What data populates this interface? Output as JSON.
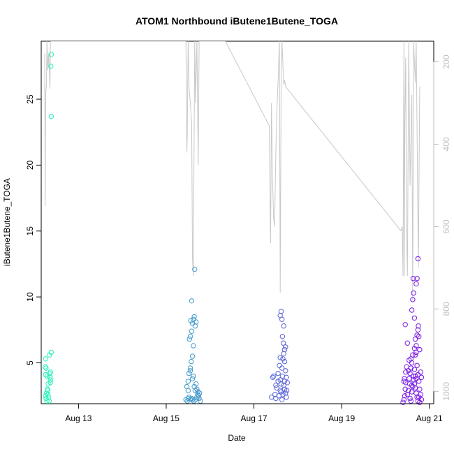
{
  "chart_data": {
    "type": "scatter",
    "title": "ATOM1 Northbound iButene1Butene_TOGA",
    "xlabel": "Date",
    "ylabel": "iButene1Butene_TOGA",
    "xlim": [
      12.15,
      21.1
    ],
    "ylim": [
      1.9,
      29.4
    ],
    "x_ticks": [
      {
        "value": 13,
        "label": "Aug 13"
      },
      {
        "value": 15,
        "label": "Aug 15"
      },
      {
        "value": 17,
        "label": "Aug 17"
      },
      {
        "value": 19,
        "label": "Aug 19"
      },
      {
        "value": 21,
        "label": "Aug 21"
      }
    ],
    "y_ticks": [
      5,
      10,
      15,
      20,
      25
    ],
    "y2_ticks": [
      200,
      400,
      600,
      800,
      1000
    ],
    "y2lim_reversed": [
      150,
      1030
    ],
    "color_gradient": {
      "start": "#22f5b8",
      "end": "#7a10e8"
    },
    "points": [
      [
        12.25,
        5.3
      ],
      [
        12.24,
        4.7
      ],
      [
        12.26,
        4.6
      ],
      [
        12.25,
        4.1
      ],
      [
        12.28,
        4.0
      ],
      [
        12.27,
        2.7
      ],
      [
        12.25,
        2.5
      ],
      [
        12.26,
        2.3
      ],
      [
        12.28,
        2.1
      ],
      [
        12.3,
        2.6
      ],
      [
        12.3,
        2.9
      ],
      [
        12.32,
        2.4
      ],
      [
        12.33,
        2.1
      ],
      [
        12.34,
        4.2
      ],
      [
        12.35,
        3.9
      ],
      [
        12.36,
        3.7
      ],
      [
        12.36,
        4.3
      ],
      [
        12.34,
        5.6
      ],
      [
        12.38,
        5.8
      ],
      [
        12.38,
        23.7
      ],
      [
        12.37,
        27.5
      ],
      [
        12.38,
        28.4
      ],
      [
        12.31,
        3.4
      ],
      [
        12.29,
        3.0
      ],
      [
        12.36,
        3.5
      ],
      [
        15.45,
        2.2
      ],
      [
        15.48,
        2.1
      ],
      [
        15.5,
        2.3
      ],
      [
        15.52,
        2.4
      ],
      [
        15.55,
        2.2
      ],
      [
        15.58,
        2.3
      ],
      [
        15.6,
        2.2
      ],
      [
        15.63,
        2.1
      ],
      [
        15.66,
        2.2
      ],
      [
        15.7,
        2.4
      ],
      [
        15.72,
        2.6
      ],
      [
        15.75,
        2.3
      ],
      [
        15.78,
        2.1
      ],
      [
        15.47,
        3.2
      ],
      [
        15.5,
        3.6
      ],
      [
        15.52,
        4.2
      ],
      [
        15.55,
        4.6
      ],
      [
        15.57,
        5.1
      ],
      [
        15.6,
        5.5
      ],
      [
        15.62,
        6.3
      ],
      [
        15.53,
        6.8
      ],
      [
        15.55,
        7.0
      ],
      [
        15.58,
        7.4
      ],
      [
        15.6,
        8.0
      ],
      [
        15.62,
        8.3
      ],
      [
        15.56,
        8.2
      ],
      [
        15.64,
        8.5
      ],
      [
        15.66,
        7.8
      ],
      [
        15.68,
        8.1
      ],
      [
        15.58,
        9.7
      ],
      [
        15.65,
        12.1
      ],
      [
        15.7,
        3.0
      ],
      [
        15.72,
        2.8
      ],
      [
        15.6,
        3.8
      ],
      [
        15.62,
        4.0
      ],
      [
        15.64,
        3.2
      ],
      [
        15.66,
        2.9
      ],
      [
        15.68,
        3.4
      ],
      [
        15.55,
        4.4
      ],
      [
        15.5,
        2.9
      ],
      [
        15.74,
        2.5
      ],
      [
        15.76,
        2.7
      ],
      [
        17.4,
        2.4
      ],
      [
        17.43,
        3.9
      ],
      [
        17.45,
        4.0
      ],
      [
        17.48,
        2.6
      ],
      [
        17.5,
        2.3
      ],
      [
        17.52,
        3.1
      ],
      [
        17.55,
        3.6
      ],
      [
        17.57,
        2.5
      ],
      [
        17.6,
        2.9
      ],
      [
        17.62,
        3.4
      ],
      [
        17.64,
        4.6
      ],
      [
        17.66,
        5.3
      ],
      [
        17.68,
        5.7
      ],
      [
        17.7,
        6.0
      ],
      [
        17.72,
        6.2
      ],
      [
        17.6,
        8.6
      ],
      [
        17.62,
        8.9
      ],
      [
        17.64,
        8.3
      ],
      [
        17.68,
        7.8
      ],
      [
        17.65,
        7.0
      ],
      [
        17.67,
        6.5
      ],
      [
        17.7,
        5.1
      ],
      [
        17.72,
        4.4
      ],
      [
        17.74,
        3.9
      ],
      [
        17.6,
        3.7
      ],
      [
        17.62,
        2.8
      ],
      [
        17.64,
        2.2
      ],
      [
        17.66,
        2.6
      ],
      [
        17.68,
        3.3
      ],
      [
        17.7,
        3.0
      ],
      [
        17.72,
        2.7
      ],
      [
        17.74,
        2.4
      ],
      [
        17.76,
        3.5
      ],
      [
        17.5,
        3.3
      ],
      [
        17.55,
        4.2
      ],
      [
        17.58,
        4.8
      ],
      [
        17.6,
        5.4
      ],
      [
        17.65,
        4.0
      ],
      [
        17.7,
        3.6
      ],
      [
        17.75,
        2.9
      ],
      [
        20.4,
        2.0
      ],
      [
        20.42,
        2.2
      ],
      [
        20.44,
        2.5
      ],
      [
        20.45,
        3.0
      ],
      [
        20.46,
        3.5
      ],
      [
        20.43,
        3.8
      ],
      [
        20.45,
        7.9
      ],
      [
        20.5,
        6.5
      ],
      [
        20.52,
        4.4
      ],
      [
        20.54,
        5.2
      ],
      [
        20.55,
        3.4
      ],
      [
        20.56,
        2.3
      ],
      [
        20.58,
        2.1
      ],
      [
        20.6,
        2.8
      ],
      [
        20.62,
        3.2
      ],
      [
        20.64,
        4.0
      ],
      [
        20.66,
        4.5
      ],
      [
        20.68,
        5.6
      ],
      [
        20.7,
        6.3
      ],
      [
        20.72,
        7.1
      ],
      [
        20.74,
        7.5
      ],
      [
        20.6,
        9.0
      ],
      [
        20.62,
        9.8
      ],
      [
        20.64,
        10.3
      ],
      [
        20.66,
        8.4
      ],
      [
        20.68,
        6.8
      ],
      [
        20.7,
        5.8
      ],
      [
        20.72,
        4.8
      ],
      [
        20.74,
        4.1
      ],
      [
        20.76,
        3.6
      ],
      [
        20.78,
        3.0
      ],
      [
        20.8,
        2.6
      ],
      [
        20.82,
        2.2
      ],
      [
        20.63,
        11.4
      ],
      [
        20.7,
        11.0
      ],
      [
        20.72,
        11.4
      ],
      [
        20.74,
        12.9
      ],
      [
        20.75,
        7.8
      ],
      [
        20.76,
        7.0
      ],
      [
        20.78,
        6.0
      ],
      [
        20.56,
        4.2
      ],
      [
        20.58,
        4.6
      ],
      [
        20.6,
        5.0
      ],
      [
        20.62,
        5.6
      ],
      [
        20.64,
        3.7
      ],
      [
        20.66,
        3.4
      ],
      [
        20.68,
        3.1
      ],
      [
        20.7,
        2.7
      ],
      [
        20.72,
        2.4
      ],
      [
        20.74,
        2.1
      ],
      [
        20.5,
        2.6
      ],
      [
        20.52,
        2.9
      ],
      [
        20.48,
        4.7
      ],
      [
        20.46,
        4.3
      ],
      [
        20.54,
        3.8
      ],
      [
        20.8,
        4.3
      ],
      [
        20.82,
        3.9
      ],
      [
        20.6,
        3.3
      ],
      [
        20.66,
        6.1
      ],
      [
        20.68,
        4.0
      ],
      [
        20.7,
        3.8
      ],
      [
        20.58,
        5.3
      ],
      [
        20.42,
        3.6
      ],
      [
        20.76,
        2.4
      ],
      [
        20.78,
        2.0
      ]
    ],
    "altitude_line": [
      [
        12.23,
        265
      ],
      [
        12.23,
        180
      ],
      [
        12.24,
        550
      ],
      [
        12.25,
        280
      ],
      [
        12.27,
        255
      ],
      [
        12.28,
        150
      ],
      [
        12.3,
        220
      ],
      [
        12.32,
        180
      ],
      [
        12.35,
        265
      ],
      [
        12.36,
        150
      ],
      [
        15.45,
        150
      ],
      [
        15.47,
        420
      ],
      [
        15.48,
        380
      ],
      [
        15.5,
        150
      ],
      [
        15.52,
        260
      ],
      [
        15.55,
        300
      ],
      [
        15.58,
        350
      ],
      [
        15.6,
        680
      ],
      [
        15.62,
        720
      ],
      [
        15.63,
        500
      ],
      [
        15.65,
        150
      ],
      [
        15.67,
        300
      ],
      [
        15.7,
        150
      ],
      [
        15.73,
        450
      ],
      [
        15.75,
        150
      ],
      [
        16.35,
        150
      ],
      [
        17.35,
        355
      ],
      [
        17.38,
        640
      ],
      [
        17.4,
        300
      ],
      [
        17.42,
        470
      ],
      [
        17.45,
        580
      ],
      [
        17.47,
        600
      ],
      [
        17.5,
        420
      ],
      [
        17.52,
        330
      ],
      [
        17.55,
        250
      ],
      [
        17.58,
        150
      ],
      [
        17.6,
        760
      ],
      [
        17.62,
        240
      ],
      [
        17.64,
        150
      ],
      [
        17.68,
        255
      ],
      [
        17.7,
        245
      ],
      [
        17.72,
        260
      ],
      [
        20.35,
        610
      ],
      [
        20.38,
        600
      ],
      [
        20.4,
        720
      ],
      [
        20.42,
        150
      ],
      [
        20.43,
        720
      ],
      [
        20.44,
        350
      ],
      [
        20.46,
        190
      ],
      [
        20.48,
        600
      ],
      [
        20.5,
        720
      ],
      [
        20.53,
        150
      ],
      [
        20.56,
        500
      ],
      [
        20.6,
        280
      ],
      [
        20.62,
        780
      ],
      [
        20.64,
        150
      ],
      [
        20.68,
        250
      ],
      [
        20.7,
        150
      ],
      [
        20.75,
        700
      ],
      [
        20.78,
        260
      ]
    ]
  }
}
